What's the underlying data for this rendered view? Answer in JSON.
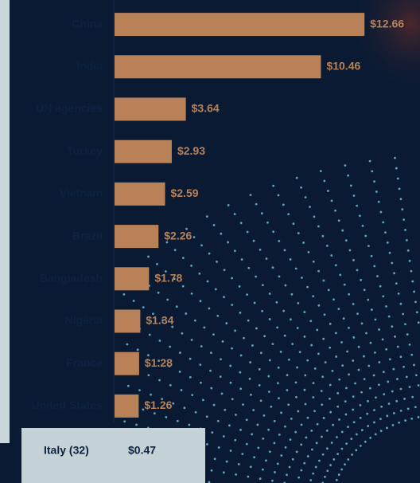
{
  "chart_data": {
    "type": "bar",
    "orientation": "horizontal",
    "categories": [
      "China",
      "India",
      "UN agencies",
      "Turkey",
      "Vietnam",
      "Brazil",
      "Bangladesh",
      "Nigeria",
      "France",
      "United States"
    ],
    "values": [
      12.66,
      10.46,
      3.64,
      2.93,
      2.59,
      2.26,
      1.78,
      1.34,
      1.28,
      1.26
    ],
    "value_labels": [
      "$12.66",
      "$10.46",
      "$3.64",
      "$2.93",
      "$2.59",
      "$2.26",
      "$1.78",
      "$1.34",
      "$1.28",
      "$1.26"
    ],
    "color": "#b98158"
  },
  "highlight": {
    "label": "Italy (32)",
    "value_label": "$0.47"
  }
}
